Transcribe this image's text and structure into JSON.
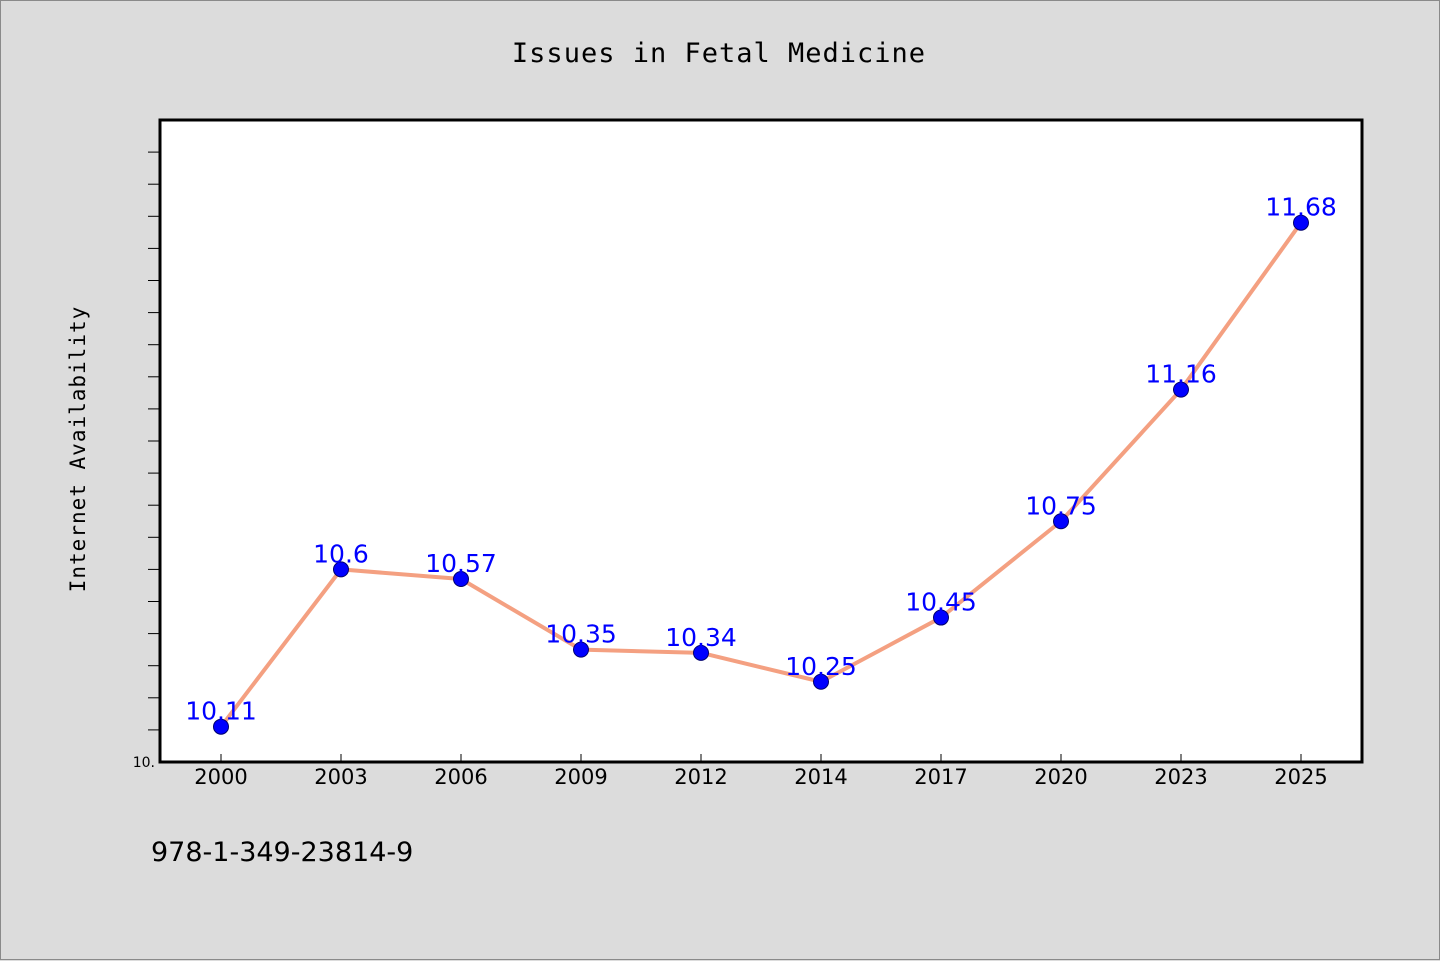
{
  "footer_code": "978-1-349-23814-9",
  "colors": {
    "background": "#dcdcdc",
    "plot_background": "#ffffff",
    "line": "#f4a081",
    "marker": "#0000ff",
    "data_label": "#0000ff"
  },
  "chart_data": {
    "type": "line",
    "title": "Issues in Fetal Medicine",
    "xlabel": "",
    "ylabel": "Internet Availability",
    "y_axis_min_label": "10.",
    "categories": [
      "2000",
      "2003",
      "2006",
      "2009",
      "2012",
      "2014",
      "2017",
      "2020",
      "2023",
      "2025"
    ],
    "series": [
      {
        "values": [
          10.11,
          10.6,
          10.57,
          10.35,
          10.34,
          10.25,
          10.45,
          10.75,
          11.16,
          11.68
        ],
        "labels": [
          "10.11",
          "10.6",
          "10.57",
          "10.35",
          "10.34",
          "10.25",
          "10.45",
          "10.75",
          "11.16",
          "11.68"
        ],
        "color": "#f4a081",
        "marker_color": "#0000ff"
      }
    ],
    "ylim": [
      10.0,
      12.0
    ],
    "grid": false,
    "legend": "none"
  }
}
